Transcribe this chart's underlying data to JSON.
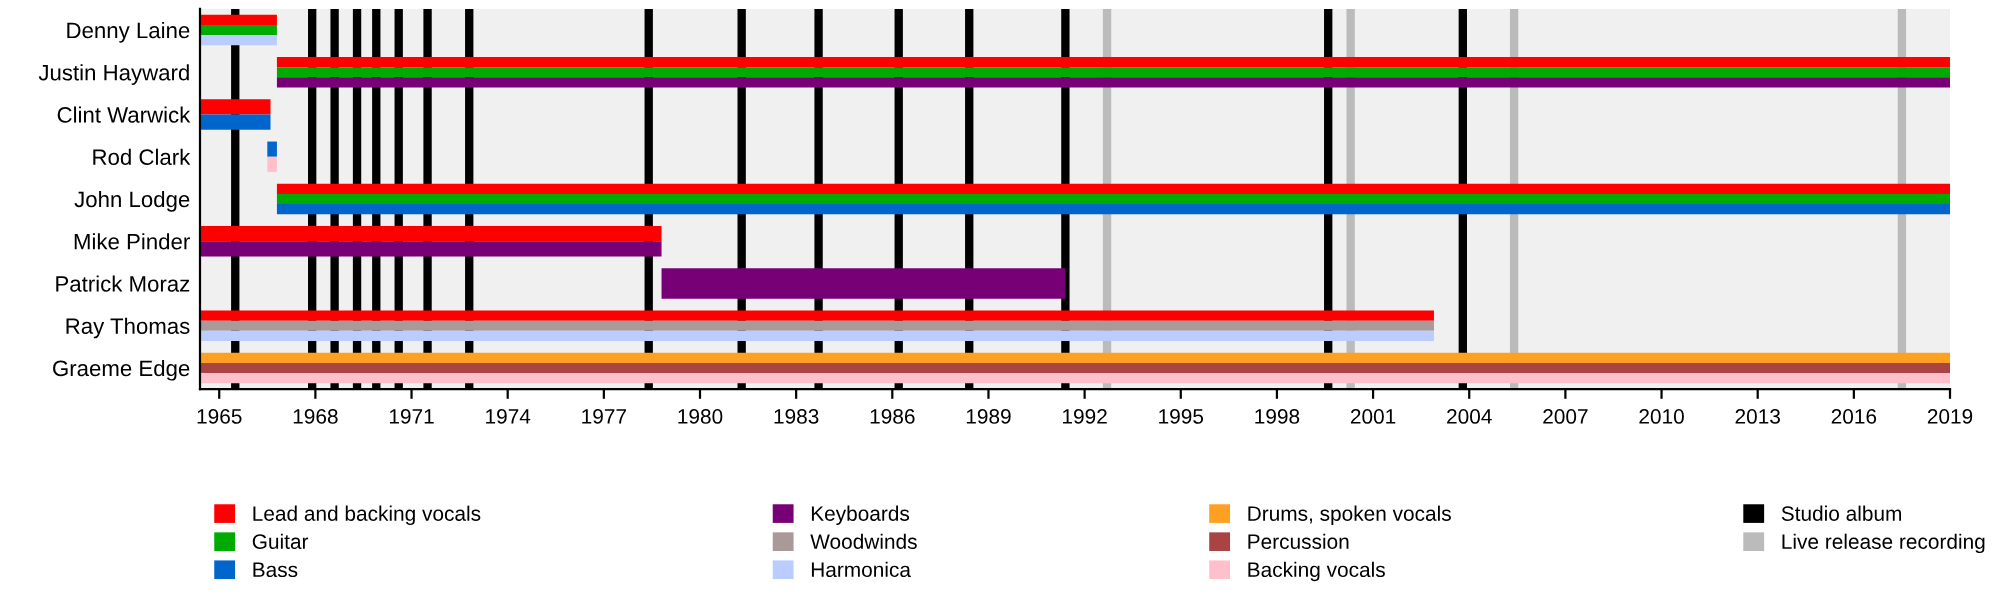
{
  "chart_data": {
    "type": "bar",
    "orientation": "horizontal",
    "legend": "bottom",
    "grid": false,
    "categories": [
      "Denny Laine",
      "Justin Hayward",
      "Clint Warwick",
      "Rod Clark",
      "John Lodge",
      "Mike Pinder",
      "Patrick Moraz",
      "Ray Thomas",
      "Graeme Edge"
    ],
    "xlim": [
      1964.4,
      2019
    ],
    "xticks": [
      1965,
      1968,
      1971,
      1974,
      1977,
      1980,
      1983,
      1986,
      1989,
      1992,
      1995,
      1998,
      2001,
      2004,
      2007,
      2010,
      2013,
      2016,
      2019
    ],
    "series": [
      {
        "name": "Lead and backing vocals",
        "color": "#ff0000",
        "base": [
          1964.4,
          1966.8,
          1964.4,
          null,
          1966.8,
          1964.4,
          null,
          1964.4,
          null
        ],
        "values": [
          2.4,
          52.2,
          2.2,
          null,
          52.2,
          14.4,
          null,
          38.5,
          null
        ]
      },
      {
        "name": "Guitar",
        "color": "#00aa00",
        "base": [
          1964.4,
          1966.8,
          null,
          null,
          1966.8,
          null,
          null,
          null,
          null
        ],
        "values": [
          2.4,
          52.2,
          null,
          null,
          52.2,
          null,
          null,
          null,
          null
        ]
      },
      {
        "name": "Bass",
        "color": "#0066cc",
        "base": [
          null,
          null,
          1964.4,
          1966.5,
          1966.8,
          null,
          null,
          null,
          null
        ],
        "values": [
          null,
          null,
          2.2,
          0.3,
          52.2,
          null,
          null,
          null,
          null
        ]
      },
      {
        "name": "Keyboards",
        "color": "#770077",
        "base": [
          null,
          1966.8,
          null,
          null,
          null,
          1964.4,
          1978.8,
          null,
          null
        ],
        "values": [
          null,
          52.2,
          null,
          null,
          null,
          14.4,
          12.6,
          null,
          null
        ]
      },
      {
        "name": "Woodwinds",
        "color": "#aa9999",
        "base": [
          null,
          null,
          null,
          null,
          null,
          null,
          null,
          1964.4,
          null
        ],
        "values": [
          null,
          null,
          null,
          null,
          null,
          null,
          null,
          38.5,
          null
        ]
      },
      {
        "name": "Harmonica",
        "color": "#bbccff",
        "base": [
          1964.4,
          null,
          null,
          null,
          null,
          null,
          null,
          1964.4,
          null
        ],
        "values": [
          2.4,
          null,
          null,
          null,
          null,
          null,
          null,
          38.5,
          null
        ]
      },
      {
        "name": "Drums, spoken vocals",
        "color": "#ffa022",
        "base": [
          null,
          null,
          null,
          null,
          null,
          null,
          null,
          null,
          1964.4
        ],
        "values": [
          null,
          null,
          null,
          null,
          null,
          null,
          null,
          null,
          54.6
        ]
      },
      {
        "name": "Percussion",
        "color": "#aa4444",
        "base": [
          null,
          null,
          null,
          null,
          null,
          null,
          null,
          null,
          1964.4
        ],
        "values": [
          null,
          null,
          null,
          null,
          null,
          null,
          null,
          null,
          54.6
        ]
      },
      {
        "name": "Backing vocals",
        "color": "#ffc0cb",
        "base": [
          null,
          null,
          null,
          1966.5,
          null,
          null,
          null,
          null,
          1964.4
        ],
        "values": [
          null,
          null,
          null,
          0.3,
          null,
          null,
          null,
          null,
          54.6
        ]
      }
    ],
    "ref_lines": [
      {
        "axis": "x",
        "value": 1965.5,
        "label": "Studio album",
        "color": "#000000"
      },
      {
        "axis": "x",
        "value": 1967.9,
        "color": "#000000"
      },
      {
        "axis": "x",
        "value": 1968.6,
        "color": "#000000"
      },
      {
        "axis": "x",
        "value": 1969.3,
        "color": "#000000"
      },
      {
        "axis": "x",
        "value": 1969.9,
        "color": "#000000"
      },
      {
        "axis": "x",
        "value": 1970.6,
        "color": "#000000"
      },
      {
        "axis": "x",
        "value": 1971.5,
        "color": "#000000"
      },
      {
        "axis": "x",
        "value": 1972.8,
        "color": "#000000"
      },
      {
        "axis": "x",
        "value": 1978.4,
        "color": "#000000"
      },
      {
        "axis": "x",
        "value": 1981.3,
        "color": "#000000"
      },
      {
        "axis": "x",
        "value": 1983.7,
        "color": "#000000"
      },
      {
        "axis": "x",
        "value": 1986.2,
        "color": "#000000"
      },
      {
        "axis": "x",
        "value": 1988.4,
        "color": "#000000"
      },
      {
        "axis": "x",
        "value": 1991.4,
        "color": "#000000"
      },
      {
        "axis": "x",
        "value": 1999.6,
        "color": "#000000"
      },
      {
        "axis": "x",
        "value": 2003.8,
        "color": "#000000"
      },
      {
        "axis": "x",
        "value": 1992.7,
        "label": "Live release recording",
        "color": "#bbbbbb"
      },
      {
        "axis": "x",
        "value": 2000.3,
        "color": "#bbbbbb"
      },
      {
        "axis": "x",
        "value": 2005.4,
        "color": "#bbbbbb"
      },
      {
        "axis": "x",
        "value": 2017.5,
        "color": "#bbbbbb"
      }
    ]
  }
}
